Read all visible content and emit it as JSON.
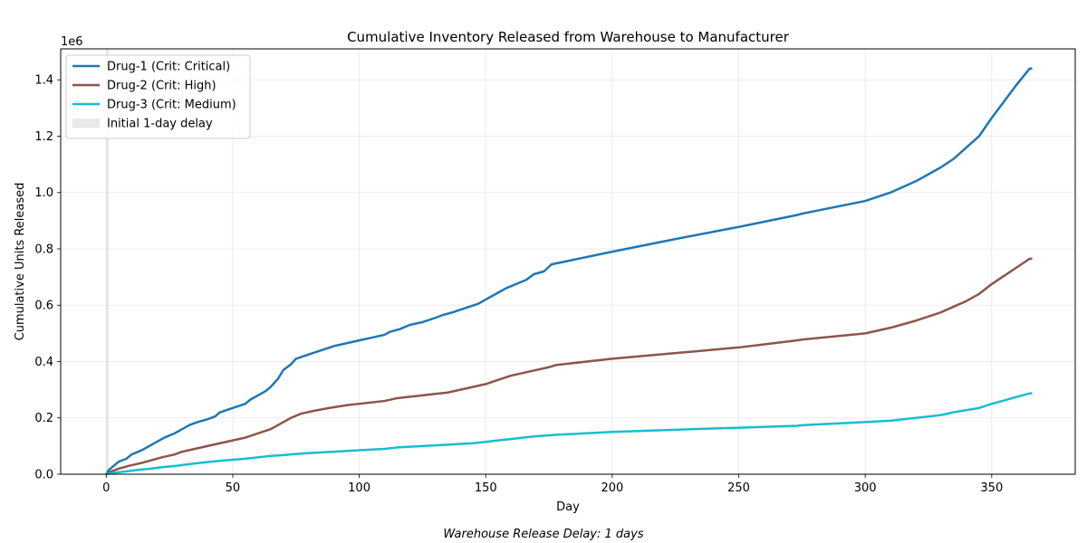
{
  "chart_data": {
    "type": "line",
    "title": "Cumulative Inventory Released from Warehouse to Manufacturer",
    "xlabel": "Day",
    "ylabel": "Cumulative Units Released",
    "y_scale_label": "1e6",
    "footnote": "Warehouse Release Delay: 1 days",
    "xlim": [
      -18,
      383
    ],
    "ylim": [
      0,
      1.51
    ],
    "x_ticks": [
      0,
      50,
      100,
      150,
      200,
      250,
      300,
      350
    ],
    "y_ticks": [
      0.0,
      0.2,
      0.4,
      0.6,
      0.8,
      1.0,
      1.2,
      1.4
    ],
    "grid": true,
    "legend_position": "top-left",
    "shaded_region": {
      "label": "Initial 1-day delay",
      "x_start": 0,
      "x_end": 1,
      "color": "#d3d3d3"
    },
    "series": [
      {
        "name": "Drug-1 (Crit: Critical)",
        "color": "#1f77b4",
        "points": [
          [
            0,
            0
          ],
          [
            1,
            0.015
          ],
          [
            3,
            0.03
          ],
          [
            5,
            0.045
          ],
          [
            8,
            0.055
          ],
          [
            10,
            0.07
          ],
          [
            14,
            0.085
          ],
          [
            17,
            0.1
          ],
          [
            20,
            0.115
          ],
          [
            23,
            0.13
          ],
          [
            27,
            0.145
          ],
          [
            30,
            0.16
          ],
          [
            33,
            0.175
          ],
          [
            36,
            0.185
          ],
          [
            40,
            0.195
          ],
          [
            43,
            0.205
          ],
          [
            45,
            0.22
          ],
          [
            50,
            0.235
          ],
          [
            55,
            0.25
          ],
          [
            57,
            0.265
          ],
          [
            60,
            0.28
          ],
          [
            63,
            0.295
          ],
          [
            65,
            0.31
          ],
          [
            68,
            0.34
          ],
          [
            70,
            0.37
          ],
          [
            73,
            0.39
          ],
          [
            75,
            0.41
          ],
          [
            80,
            0.425
          ],
          [
            85,
            0.44
          ],
          [
            90,
            0.455
          ],
          [
            95,
            0.465
          ],
          [
            100,
            0.475
          ],
          [
            105,
            0.485
          ],
          [
            110,
            0.495
          ],
          [
            112,
            0.505
          ],
          [
            116,
            0.515
          ],
          [
            120,
            0.53
          ],
          [
            125,
            0.54
          ],
          [
            130,
            0.555
          ],
          [
            133,
            0.565
          ],
          [
            137,
            0.575
          ],
          [
            142,
            0.59
          ],
          [
            147,
            0.605
          ],
          [
            151,
            0.625
          ],
          [
            155,
            0.645
          ],
          [
            158,
            0.66
          ],
          [
            162,
            0.675
          ],
          [
            166,
            0.69
          ],
          [
            169,
            0.71
          ],
          [
            173,
            0.72
          ],
          [
            176,
            0.745
          ],
          [
            200,
            0.79
          ],
          [
            225,
            0.835
          ],
          [
            250,
            0.878
          ],
          [
            273,
            0.92
          ],
          [
            275,
            0.925
          ],
          [
            300,
            0.97
          ],
          [
            310,
            1.0
          ],
          [
            320,
            1.04
          ],
          [
            330,
            1.09
          ],
          [
            335,
            1.12
          ],
          [
            340,
            1.16
          ],
          [
            345,
            1.2
          ],
          [
            350,
            1.265
          ],
          [
            355,
            1.325
          ],
          [
            360,
            1.385
          ],
          [
            365,
            1.44
          ],
          [
            366,
            1.44
          ]
        ]
      },
      {
        "name": "Drug-2 (Crit: High)",
        "color": "#8c564b",
        "points": [
          [
            0,
            0
          ],
          [
            2,
            0.01
          ],
          [
            5,
            0.02
          ],
          [
            9,
            0.03
          ],
          [
            14,
            0.04
          ],
          [
            18,
            0.05
          ],
          [
            22,
            0.06
          ],
          [
            27,
            0.07
          ],
          [
            30,
            0.08
          ],
          [
            35,
            0.09
          ],
          [
            40,
            0.1
          ],
          [
            45,
            0.11
          ],
          [
            50,
            0.12
          ],
          [
            55,
            0.13
          ],
          [
            60,
            0.145
          ],
          [
            65,
            0.16
          ],
          [
            70,
            0.185
          ],
          [
            73,
            0.2
          ],
          [
            77,
            0.215
          ],
          [
            82,
            0.225
          ],
          [
            88,
            0.235
          ],
          [
            95,
            0.245
          ],
          [
            100,
            0.25
          ],
          [
            105,
            0.255
          ],
          [
            110,
            0.26
          ],
          [
            115,
            0.27
          ],
          [
            120,
            0.275
          ],
          [
            125,
            0.28
          ],
          [
            130,
            0.285
          ],
          [
            135,
            0.29
          ],
          [
            140,
            0.3
          ],
          [
            145,
            0.31
          ],
          [
            150,
            0.32
          ],
          [
            155,
            0.335
          ],
          [
            160,
            0.35
          ],
          [
            165,
            0.36
          ],
          [
            170,
            0.37
          ],
          [
            175,
            0.38
          ],
          [
            178,
            0.388
          ],
          [
            200,
            0.41
          ],
          [
            225,
            0.43
          ],
          [
            250,
            0.45
          ],
          [
            273,
            0.475
          ],
          [
            275,
            0.478
          ],
          [
            300,
            0.5
          ],
          [
            310,
            0.52
          ],
          [
            320,
            0.545
          ],
          [
            330,
            0.575
          ],
          [
            335,
            0.595
          ],
          [
            340,
            0.615
          ],
          [
            345,
            0.64
          ],
          [
            350,
            0.675
          ],
          [
            355,
            0.705
          ],
          [
            360,
            0.735
          ],
          [
            365,
            0.765
          ],
          [
            366,
            0.765
          ]
        ]
      },
      {
        "name": "Drug-3 (Crit: Medium)",
        "color": "#17becf",
        "points": [
          [
            0,
            0
          ],
          [
            3,
            0.005
          ],
          [
            8,
            0.01
          ],
          [
            12,
            0.015
          ],
          [
            18,
            0.02
          ],
          [
            22,
            0.025
          ],
          [
            28,
            0.03
          ],
          [
            32,
            0.035
          ],
          [
            37,
            0.04
          ],
          [
            42,
            0.045
          ],
          [
            48,
            0.05
          ],
          [
            55,
            0.055
          ],
          [
            60,
            0.06
          ],
          [
            65,
            0.065
          ],
          [
            70,
            0.068
          ],
          [
            75,
            0.072
          ],
          [
            80,
            0.075
          ],
          [
            90,
            0.08
          ],
          [
            100,
            0.085
          ],
          [
            110,
            0.09
          ],
          [
            115,
            0.095
          ],
          [
            125,
            0.1
          ],
          [
            135,
            0.105
          ],
          [
            145,
            0.11
          ],
          [
            150,
            0.115
          ],
          [
            155,
            0.12
          ],
          [
            160,
            0.125
          ],
          [
            165,
            0.13
          ],
          [
            170,
            0.135
          ],
          [
            175,
            0.138
          ],
          [
            178,
            0.14
          ],
          [
            200,
            0.15
          ],
          [
            225,
            0.158
          ],
          [
            250,
            0.165
          ],
          [
            273,
            0.172
          ],
          [
            275,
            0.174
          ],
          [
            300,
            0.185
          ],
          [
            310,
            0.19
          ],
          [
            320,
            0.2
          ],
          [
            330,
            0.21
          ],
          [
            335,
            0.22
          ],
          [
            345,
            0.235
          ],
          [
            350,
            0.25
          ],
          [
            355,
            0.262
          ],
          [
            360,
            0.275
          ],
          [
            365,
            0.287
          ],
          [
            366,
            0.287
          ]
        ]
      }
    ]
  }
}
